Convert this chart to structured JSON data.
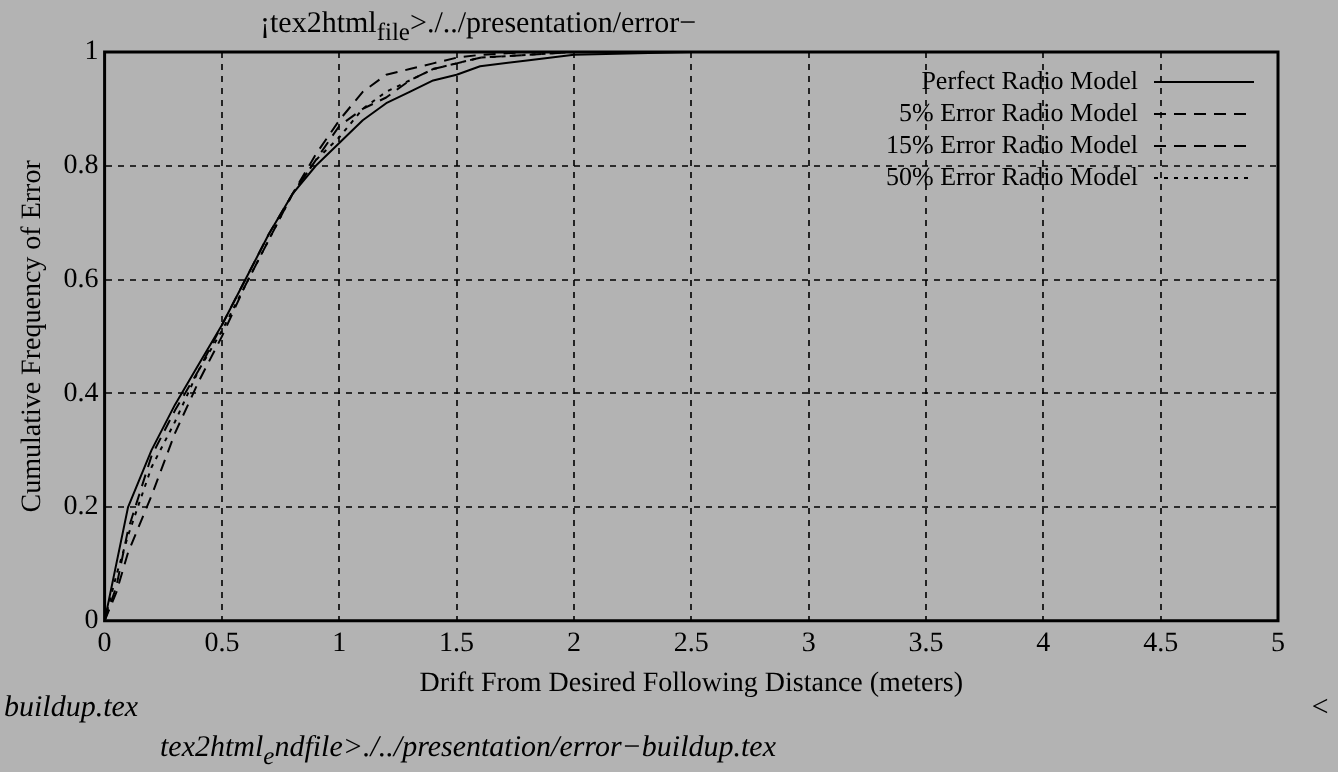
{
  "chart_data": {
    "type": "line",
    "xlabel": "Drift From Desired Following Distance (meters)",
    "ylabel": "Cumulative Frequency of Error",
    "annotations": [
      "¡tex2html$_{file}$>./../presentation/error−",
      "buildup.tex",
      "<",
      "tex2html$_{e}$ndfile>./../presentation/error−buildup.tex"
    ],
    "x": [
      0,
      0.05,
      0.1,
      0.2,
      0.3,
      0.4,
      0.5,
      0.6,
      0.7,
      0.8,
      0.9,
      1.0,
      1.1,
      1.2,
      1.3,
      1.4,
      1.5,
      1.6,
      1.8,
      2.0,
      2.5,
      2.93
    ],
    "series": [
      {
        "name": "Perfect Radio Model",
        "color": "#000000",
        "line_style": "solid",
        "values": [
          0,
          0.1,
          0.2,
          0.3,
          0.38,
          0.45,
          0.52,
          0.6,
          0.68,
          0.75,
          0.8,
          0.84,
          0.88,
          0.91,
          0.93,
          0.95,
          0.96,
          0.975,
          0.985,
          0.995,
          1,
          1
        ]
      },
      {
        "name": "5% Error Radio Model",
        "color": "#000000",
        "line_style": "dashed",
        "x": [
          0,
          0.05,
          0.1,
          0.2,
          0.3,
          0.4,
          0.5,
          0.6,
          0.7,
          0.8,
          0.9,
          1.0,
          1.1,
          1.2,
          1.3,
          1.4,
          1.5,
          1.6,
          1.8,
          2.0,
          2.5
        ],
        "values": [
          0,
          0.06,
          0.16,
          0.29,
          0.37,
          0.44,
          0.52,
          0.6,
          0.68,
          0.75,
          0.81,
          0.87,
          0.9,
          0.92,
          0.95,
          0.97,
          0.98,
          0.99,
          0.995,
          1,
          1
        ]
      },
      {
        "name": "15% Error Radio Model",
        "color": "#000000",
        "line_style": "dashed",
        "x": [
          0,
          0.05,
          0.1,
          0.2,
          0.3,
          0.4,
          0.5,
          0.6,
          0.7,
          0.8,
          0.9,
          1.0,
          1.1,
          1.2,
          1.3,
          1.4,
          1.5,
          1.6,
          1.8,
          2.0
        ],
        "values": [
          0,
          0.05,
          0.12,
          0.22,
          0.33,
          0.42,
          0.5,
          0.59,
          0.67,
          0.75,
          0.82,
          0.88,
          0.93,
          0.96,
          0.97,
          0.98,
          0.99,
          0.995,
          1,
          1
        ]
      },
      {
        "name": "50% Error Radio Model",
        "color": "#000000",
        "line_style": "dotted",
        "x": [
          0,
          0.05,
          0.1,
          0.2,
          0.3,
          0.4,
          0.5,
          0.6,
          0.7,
          0.8,
          0.9,
          1.0,
          1.1,
          1.2,
          1.3,
          1.4,
          1.5,
          1.6,
          1.8,
          2.0,
          2.3
        ],
        "values": [
          0,
          0.08,
          0.15,
          0.27,
          0.35,
          0.44,
          0.51,
          0.59,
          0.67,
          0.75,
          0.81,
          0.85,
          0.9,
          0.93,
          0.95,
          0.97,
          0.98,
          0.99,
          0.995,
          1,
          1
        ]
      }
    ],
    "xlim": [
      0,
      5
    ],
    "xticks": [
      0,
      0.5,
      1,
      1.5,
      2,
      2.5,
      3,
      3.5,
      4,
      4.5,
      5
    ],
    "ylim": [
      0,
      1
    ],
    "yticks": [
      0,
      0.2,
      0.4,
      0.6,
      0.8,
      1
    ],
    "grid": true,
    "legend": "top right"
  }
}
